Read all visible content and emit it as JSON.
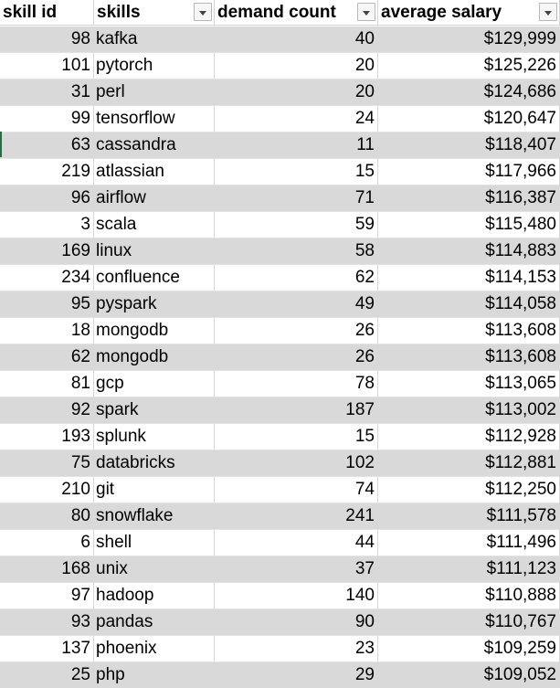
{
  "table": {
    "columns": [
      "skill id",
      "skills",
      "demand count",
      "average salary"
    ],
    "rows": [
      {
        "skill_id": "98",
        "skill": "kafka",
        "demand_count": "40",
        "average_salary": "$129,999"
      },
      {
        "skill_id": "101",
        "skill": "pytorch",
        "demand_count": "20",
        "average_salary": "$125,226"
      },
      {
        "skill_id": "31",
        "skill": "perl",
        "demand_count": "20",
        "average_salary": "$124,686"
      },
      {
        "skill_id": "99",
        "skill": "tensorflow",
        "demand_count": "24",
        "average_salary": "$120,647"
      },
      {
        "skill_id": "63",
        "skill": "cassandra",
        "demand_count": "11",
        "average_salary": "$118,407"
      },
      {
        "skill_id": "219",
        "skill": "atlassian",
        "demand_count": "15",
        "average_salary": "$117,966"
      },
      {
        "skill_id": "96",
        "skill": "airflow",
        "demand_count": "71",
        "average_salary": "$116,387"
      },
      {
        "skill_id": "3",
        "skill": "scala",
        "demand_count": "59",
        "average_salary": "$115,480"
      },
      {
        "skill_id": "169",
        "skill": "linux",
        "demand_count": "58",
        "average_salary": "$114,883"
      },
      {
        "skill_id": "234",
        "skill": "confluence",
        "demand_count": "62",
        "average_salary": "$114,153"
      },
      {
        "skill_id": "95",
        "skill": "pyspark",
        "demand_count": "49",
        "average_salary": "$114,058"
      },
      {
        "skill_id": "18",
        "skill": "mongodb",
        "demand_count": "26",
        "average_salary": "$113,608"
      },
      {
        "skill_id": "62",
        "skill": "mongodb",
        "demand_count": "26",
        "average_salary": "$113,608"
      },
      {
        "skill_id": "81",
        "skill": "gcp",
        "demand_count": "78",
        "average_salary": "$113,065"
      },
      {
        "skill_id": "92",
        "skill": "spark",
        "demand_count": "187",
        "average_salary": "$113,002"
      },
      {
        "skill_id": "193",
        "skill": "splunk",
        "demand_count": "15",
        "average_salary": "$112,928"
      },
      {
        "skill_id": "75",
        "skill": "databricks",
        "demand_count": "102",
        "average_salary": "$112,881"
      },
      {
        "skill_id": "210",
        "skill": "git",
        "demand_count": "74",
        "average_salary": "$112,250"
      },
      {
        "skill_id": "80",
        "skill": "snowflake",
        "demand_count": "241",
        "average_salary": "$111,578"
      },
      {
        "skill_id": "6",
        "skill": "shell",
        "demand_count": "44",
        "average_salary": "$111,496"
      },
      {
        "skill_id": "168",
        "skill": "unix",
        "demand_count": "37",
        "average_salary": "$111,123"
      },
      {
        "skill_id": "97",
        "skill": "hadoop",
        "demand_count": "140",
        "average_salary": "$110,888"
      },
      {
        "skill_id": "93",
        "skill": "pandas",
        "demand_count": "90",
        "average_salary": "$110,767"
      },
      {
        "skill_id": "137",
        "skill": "phoenix",
        "demand_count": "23",
        "average_salary": "$109,259"
      },
      {
        "skill_id": "25",
        "skill": "php",
        "demand_count": "29",
        "average_salary": "$109,052"
      }
    ]
  },
  "icons": {
    "filter": "filter-dropdown-arrow-icon"
  }
}
